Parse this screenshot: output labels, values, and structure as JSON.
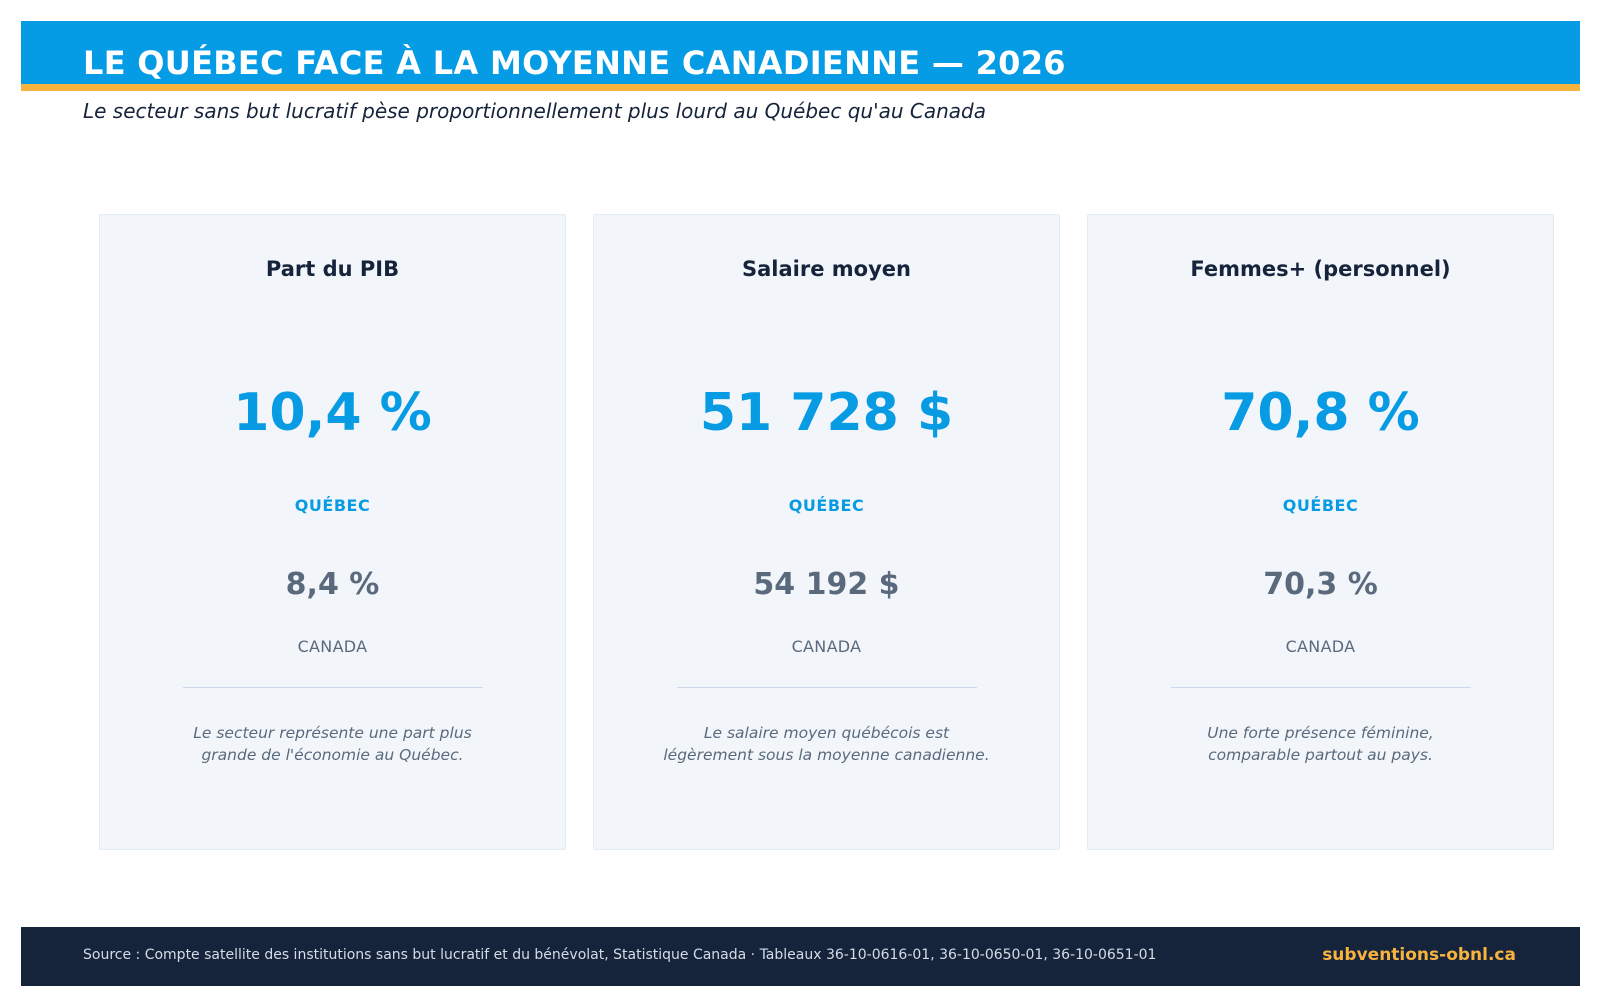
{
  "header": {
    "title": "LE QUÉBEC FACE À LA MOYENNE CANADIENNE — 2026",
    "subtitle": "Le secteur sans but lucratif pèse proportionnellement plus lourd au Québec qu'au Canada"
  },
  "cards": [
    {
      "title": "Part du PIB",
      "quebec_value": "10,4 %",
      "quebec_label": "QUÉBEC",
      "canada_value": "8,4 %",
      "canada_label": "CANADA",
      "note_lines": [
        "Le secteur représente une part plus",
        "grande de l'économie au Québec."
      ]
    },
    {
      "title": "Salaire moyen",
      "quebec_value": "51 728 $",
      "quebec_label": "QUÉBEC",
      "canada_value": "54 192 $",
      "canada_label": "CANADA",
      "note_lines": [
        "Le salaire moyen québécois est",
        "légèrement sous la moyenne canadienne."
      ]
    },
    {
      "title": "Femmes+ (personnel)",
      "quebec_value": "70,8 %",
      "quebec_label": "QUÉBEC",
      "canada_value": "70,3 %",
      "canada_label": "CANADA",
      "note_lines": [
        "Une forte présence féminine,",
        "comparable partout au pays."
      ]
    }
  ],
  "footer": {
    "source": "Source : Compte satellite des institutions sans but lucratif et du bénévolat, Statistique Canada  ·  Tableaux 36-10-0616-01, 36-10-0650-01, 36-10-0651-01",
    "brand": "subventions-obnl.ca"
  },
  "colors": {
    "accent_blue": "#059be5",
    "accent_orange": "#f7b33e",
    "navy": "#15233b",
    "muted": "#5a6a7c",
    "card_bg": "#f2f6fb"
  }
}
